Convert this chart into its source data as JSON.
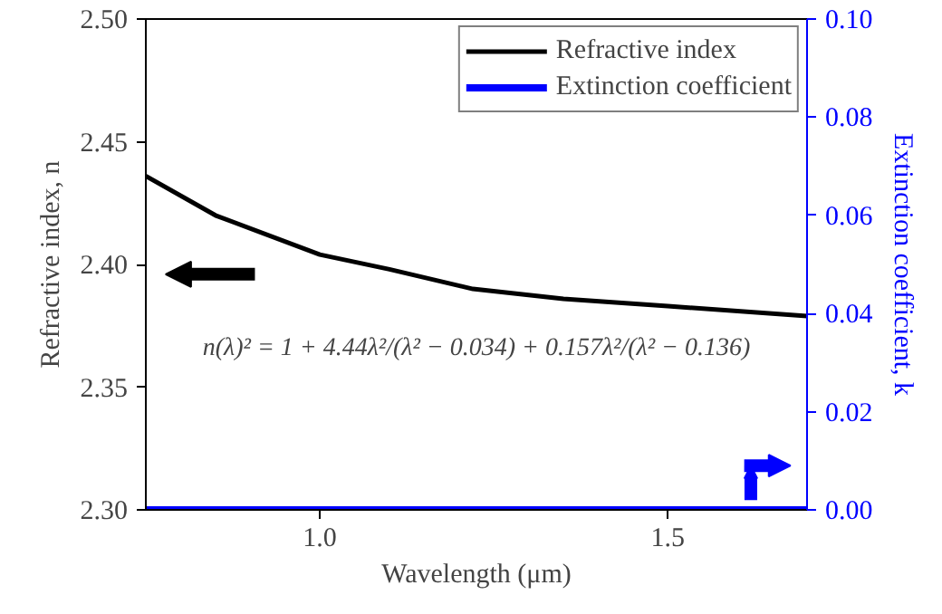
{
  "chart_data": {
    "type": "line",
    "xlabel": "Wavelength (μm)",
    "ylabel": "Refractive index, n",
    "y2label": "Extinction coefficient, k",
    "xlim": [
      0.75,
      1.7
    ],
    "xticks": [
      {
        "value": 1.0,
        "label": "1.0"
      },
      {
        "value": 1.5,
        "label": "1.5"
      }
    ],
    "ylim": [
      2.3,
      2.5
    ],
    "yticks": [
      {
        "value": 2.3,
        "label": "2.30"
      },
      {
        "value": 2.35,
        "label": "2.35"
      },
      {
        "value": 2.4,
        "label": "2.40"
      },
      {
        "value": 2.45,
        "label": "2.45"
      },
      {
        "value": 2.5,
        "label": "2.50"
      }
    ],
    "y2lim": [
      0.0,
      0.1
    ],
    "y2ticks": [
      {
        "value": 0,
        "label": "0.00"
      },
      {
        "value": 0.02,
        "label": "0.02"
      },
      {
        "value": 0.04,
        "label": "0.04"
      },
      {
        "value": 0.06,
        "label": "0.06"
      },
      {
        "value": 0.08,
        "label": "0.08"
      },
      {
        "value": 0.1,
        "label": "0.10"
      }
    ],
    "series": [
      {
        "name": "Refractive index",
        "color": "#000000",
        "x": [
          0.75,
          0.85,
          1.0,
          1.1,
          1.22,
          1.35,
          1.5,
          1.7
        ],
        "values": [
          2.436,
          2.42,
          2.404,
          2.398,
          2.39,
          2.386,
          2.383,
          2.379
        ]
      },
      {
        "name": "Extinction coefficient",
        "color": "#0000ff",
        "axis": "y2",
        "x": [
          0.75,
          1.7
        ],
        "values": [
          0.0,
          0.0
        ]
      }
    ],
    "annotations": [
      "n(λ)² = 1 + 4.44λ²/(λ² − 0.034) + 0.157λ²/(λ² − 0.136)"
    ],
    "legend": "top right",
    "grid": false,
    "line_style": "solid",
    "marker": "none"
  }
}
